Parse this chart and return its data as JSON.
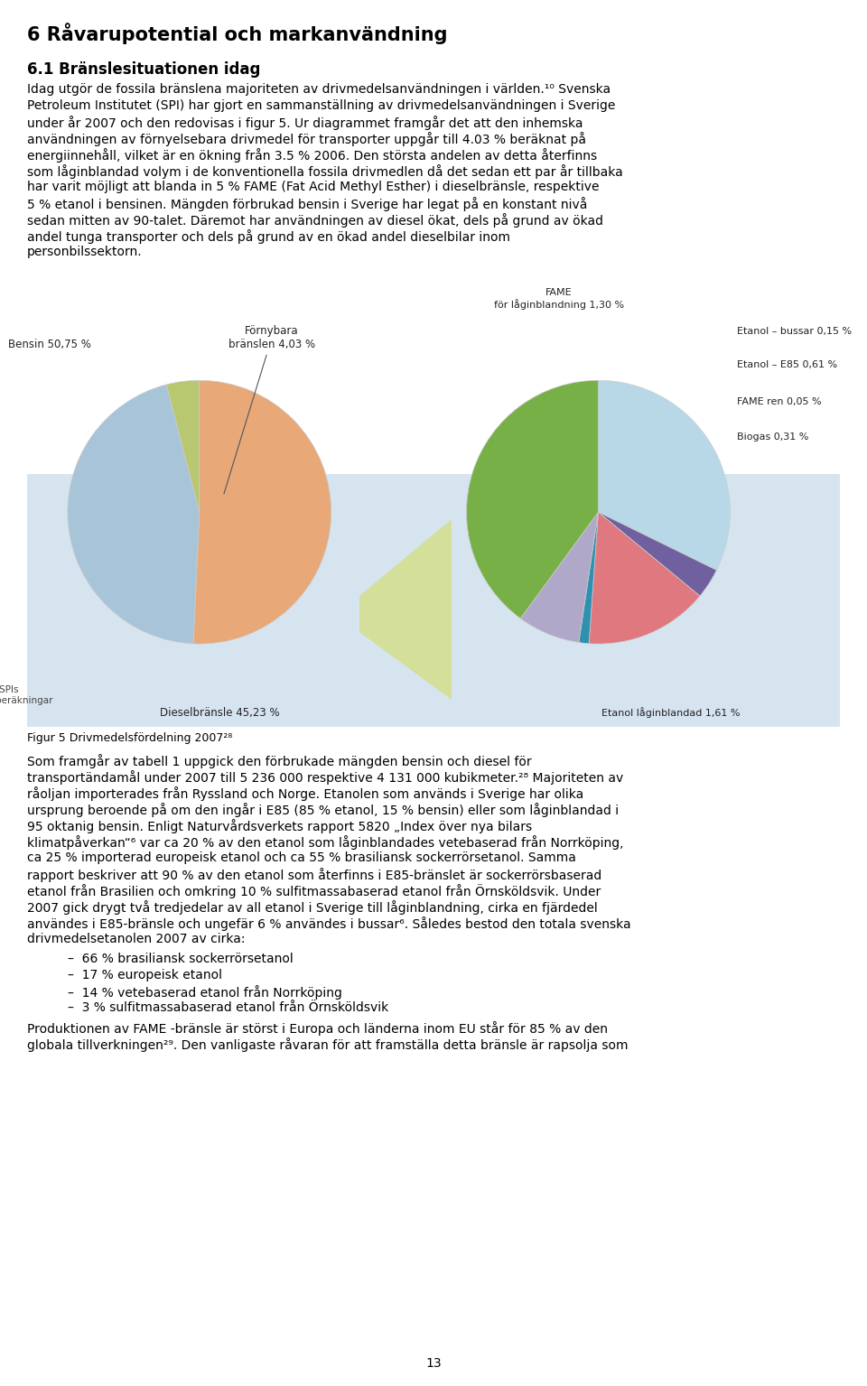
{
  "title": "Figur 5 Drivmedelsfördelning 2007²⁸",
  "background_color": "#d6e4f0",
  "page_bg": "#ffffff",
  "heading1": "6 Råvarupotential och markanvändning",
  "heading2": "6.1 Bränslesituationen idag",
  "body_top": [
    "Idag utgör de fossila bränslena majoriteten av drivmedelsanvändningen i världen.¹⁰ Svenska",
    "Petroleum Institutet (SPI) har gjort en sammanställning av drivmedelsanvändningen i Sverige",
    "under år 2007 och den redovisas i figur 5. Ur diagrammet framgår det att den inhemska",
    "användningen av förnyelsebara drivmedel för transporter uppgår till 4.03 % beräknat på",
    "energiinnehåll, vilket är en ökning från 3.5 % 2006. Den största andelen av detta återfinns",
    "som låginblandad volym i de konventionella fossila drivmedlen då det sedan ett par år tillbaka",
    "har varit möjligt att blanda in 5 % FAME (Fat Acid Methyl Esther) i dieselbränsle, respektive",
    "5 % etanol i bensinen. Mängden förbrukad bensin i Sverige har legat på en konstant nivå",
    "sedan mitten av 90-talet. Däremot har användningen av diesel ökat, dels på grund av ökad",
    "andel tunga transporter och dels på grund av en ökad andel dieselbilar inom",
    "personbilssektorn."
  ],
  "body_bottom": [
    "Som framgår av tabell 1 uppgick den förbrukade mängden bensin och diesel för",
    "transportändamål under 2007 till 5 236 000 respektive 4 131 000 kubikmeter.²⁸ Majoriteten av",
    "råoljan importerades från Ryssland och Norge. Etanolen som används i Sverige har olika",
    "ursprung beroende på om den ingår i E85 (85 % etanol, 15 % bensin) eller som låginblandad i",
    "95 oktanig bensin. Enligt Naturvårdsverkets rapport 5820 „Index över nya bilars",
    "klimatpåverkan“⁶ var ca 20 % av den etanol som låginblandades vetebaserad från Norrköping,",
    "ca 25 % importerad europeisk etanol och ca 55 % brasiliansk sockerrörsetanol. Samma",
    "rapport beskriver att 90 % av den etanol som återfinns i E85-bränslet är sockerrörsbaserad",
    "etanol från Brasilien och omkring 10 % sulfitmassabaserad etanol från Örnsköldsvik. Under",
    "2007 gick drygt två tredjedelar av all etanol i Sverige till låginblandning, cirka en fjärdedel",
    "användes i E85-bränsle och ungefär 6 % användes i bussar⁶. Således bestod den totala svenska",
    "drivmedelsetanolen 2007 av cirka:"
  ],
  "bullets": [
    "66 % brasiliansk sockerrörsetanol",
    "17 % europeisk etanol",
    "14 % vetebaserad etanol från Norrköping",
    "3 % sulfitmassabaserad etanol från Örnsköldsvik"
  ],
  "body_end": [
    "Produktionen av FAME -bränsle är störst i Europa och länderna inom EU står för 85 % av den",
    "globala tillverkningen²⁹. Den vanligaste råvaran för att framställa detta bränsle är rapsolja som"
  ],
  "page_number": "13",
  "left_pie": {
    "values": [
      50.75,
      45.23,
      4.03
    ],
    "colors": [
      "#e8a878",
      "#a8c4d8",
      "#b8c870"
    ],
    "explode": [
      0.0,
      0.0,
      0.0
    ],
    "startangle": 90,
    "label_bensin": "Bensin 50,75 %",
    "label_diesel": "Dieselbränsle 45,23 %",
    "label_fornybara": "Förnybara\nbränslen 4,03 %",
    "note": "*SPIs\nberäkningar"
  },
  "right_pie": {
    "values": [
      1.3,
      0.15,
      0.61,
      0.05,
      0.31,
      1.61
    ],
    "colors": [
      "#b8d8e8",
      "#7060a0",
      "#e07880",
      "#3090b0",
      "#b0a8c8",
      "#78b048"
    ],
    "startangle": 90,
    "labels": [
      "FAME\nför låginblandning 1,30 %",
      "Etanol – bussar 0,15 %",
      "Etanol – E85 0,61 %",
      "FAME ren 0,05 %",
      "Biogas 0,31 %",
      "Etanol låginblandad 1,61 %"
    ]
  }
}
